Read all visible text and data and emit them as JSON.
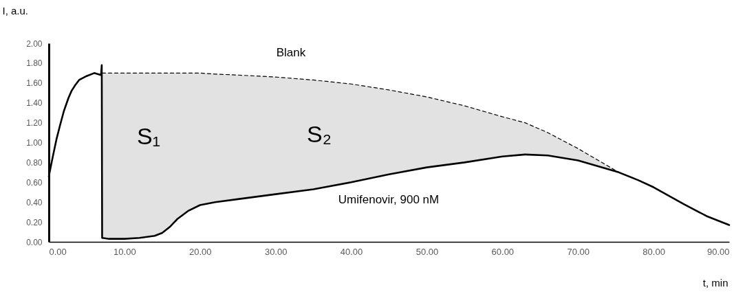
{
  "chart_data": {
    "type": "line",
    "xlabel": "t, min",
    "ylabel": "I, a.u.",
    "xlim": [
      0,
      90
    ],
    "ylim": [
      0,
      2
    ],
    "xticks": [
      {
        "value": 0,
        "label": "0.00"
      },
      {
        "value": 10,
        "label": "10.00"
      },
      {
        "value": 20,
        "label": "20.00"
      },
      {
        "value": 30,
        "label": "30.00"
      },
      {
        "value": 40,
        "label": "40.00"
      },
      {
        "value": 50,
        "label": "50.00"
      },
      {
        "value": 60,
        "label": "60.00"
      },
      {
        "value": 70,
        "label": "70.00"
      },
      {
        "value": 80,
        "label": "80.00"
      },
      {
        "value": 90,
        "label": "90.00"
      }
    ],
    "yticks": [
      {
        "value": 0,
        "label": "0.00"
      },
      {
        "value": 0.2,
        "label": "0.20"
      },
      {
        "value": 0.4,
        "label": "0.40"
      },
      {
        "value": 0.6,
        "label": "0.60"
      },
      {
        "value": 0.8,
        "label": "0.80"
      },
      {
        "value": 1,
        "label": "1.00"
      },
      {
        "value": 1.2,
        "label": "1.20"
      },
      {
        "value": 1.4,
        "label": "1.40"
      },
      {
        "value": 1.6,
        "label": "1.60"
      },
      {
        "value": 1.8,
        "label": "1.80"
      },
      {
        "value": 2,
        "label": "2.00"
      }
    ],
    "series": [
      {
        "color": "#000000",
        "line_style": "solid",
        "x": [
          0,
          0.5,
          1,
          1.5,
          2,
          2.6,
          3,
          3.5,
          4,
          5,
          6,
          6.9,
          7,
          7.05,
          8,
          10,
          12,
          14,
          15,
          16,
          17,
          18.4,
          20,
          22,
          25,
          30,
          35,
          40,
          45,
          50,
          55,
          60,
          63,
          66,
          70,
          75.4,
          78,
          80,
          84,
          87,
          90
        ],
        "values": [
          0.66,
          0.85,
          1.03,
          1.18,
          1.32,
          1.45,
          1.52,
          1.58,
          1.63,
          1.67,
          1.7,
          1.68,
          1.78,
          0.04,
          0.03,
          0.03,
          0.04,
          0.06,
          0.09,
          0.15,
          0.23,
          0.31,
          0.37,
          0.4,
          0.43,
          0.48,
          0.53,
          0.6,
          0.68,
          0.75,
          0.8,
          0.86,
          0.88,
          0.87,
          0.82,
          0.7,
          0.62,
          0.55,
          0.38,
          0.26,
          0.17
        ]
      },
      {
        "color": "#000000",
        "line_style": "dashed",
        "x": [
          7.05,
          8,
          10,
          12,
          14,
          15,
          16,
          17,
          18.4,
          20,
          22,
          25,
          30,
          35,
          40,
          45,
          50,
          55,
          60,
          63,
          66,
          70,
          75.4
        ],
        "values": [
          1.7,
          1.7,
          1.7,
          1.7,
          1.7,
          1.7,
          1.7,
          1.7,
          1.7,
          1.7,
          1.69,
          1.68,
          1.66,
          1.63,
          1.59,
          1.53,
          1.46,
          1.37,
          1.26,
          1.2,
          1.1,
          0.94,
          0.7
        ],
        "lower": [
          0.04,
          0.03,
          0.03,
          0.04,
          0.06,
          0.09,
          0.15,
          0.23,
          0.31,
          0.37,
          0.4,
          0.43,
          0.48,
          0.53,
          0.6,
          0.68,
          0.75,
          0.8,
          0.86,
          0.88,
          0.87,
          0.82,
          0.7
        ],
        "upper": [
          1.7,
          1.7,
          1.7,
          1.7,
          1.7,
          1.7,
          1.7,
          1.7,
          1.7,
          1.7,
          1.69,
          1.68,
          1.66,
          1.63,
          1.59,
          1.53,
          1.46,
          1.37,
          1.26,
          1.2,
          1.1,
          0.94,
          0.7
        ]
      }
    ],
    "annotations": [
      "Blank",
      "S₁",
      "S₂",
      "Umifenovir, 900 nM"
    ]
  }
}
